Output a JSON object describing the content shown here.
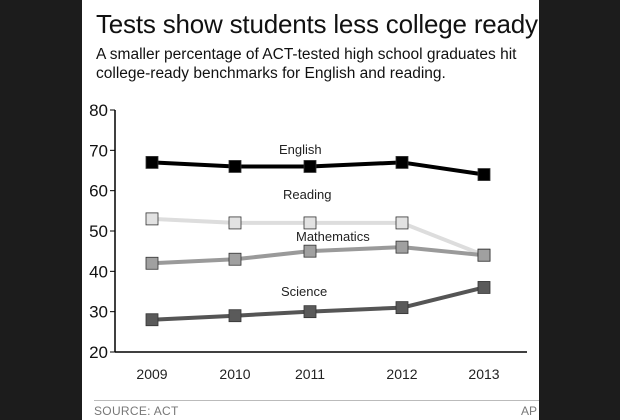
{
  "header": {
    "title": "Tests show students less college ready",
    "subtitle": "A smaller percentage of ACT-tested high school graduates hit college-ready benchmarks for English and reading."
  },
  "footer": {
    "source": "SOURCE: ACT",
    "credit": "AP"
  },
  "chart_data": {
    "type": "line",
    "x": [
      "2009",
      "2010",
      "2011",
      "2012",
      "2013"
    ],
    "ylim": [
      20,
      80
    ],
    "yticks": [
      20,
      30,
      40,
      50,
      60,
      70,
      80
    ],
    "grid": false,
    "series": [
      {
        "name": "English",
        "values": [
          67,
          66,
          66,
          67,
          64
        ],
        "line_color": "#000000",
        "marker_color": "#000000"
      },
      {
        "name": "Reading",
        "values": [
          53,
          52,
          52,
          52,
          44
        ],
        "line_color": "#dddddd",
        "marker_color": "#e2e2e2"
      },
      {
        "name": "Mathematics",
        "values": [
          42,
          43,
          45,
          46,
          44
        ],
        "line_color": "#9a9a9a",
        "marker_color": "#a0a0a0"
      },
      {
        "name": "Science",
        "values": [
          28,
          29,
          30,
          31,
          36
        ],
        "line_color": "#555555",
        "marker_color": "#5a5a5a"
      }
    ]
  }
}
